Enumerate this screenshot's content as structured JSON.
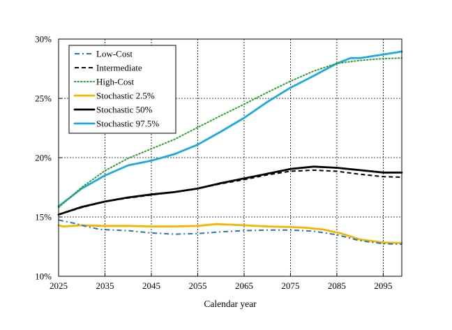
{
  "chart_data": {
    "type": "line",
    "title": "",
    "xlabel": "Calendar year",
    "ylabel": "",
    "xlim": [
      2025,
      2099
    ],
    "ylim": [
      10,
      30
    ],
    "xticks": [
      2025,
      2035,
      2045,
      2055,
      2065,
      2075,
      2085,
      2095
    ],
    "xtick_labels": [
      "2025",
      "2035",
      "2045",
      "2055",
      "2065",
      "2075",
      "2085",
      "2095"
    ],
    "yticks": [
      10,
      15,
      20,
      25,
      30
    ],
    "ytick_labels": [
      "10%",
      "15%",
      "20%",
      "25%",
      "30%"
    ],
    "grid": true,
    "legend_position": "top-left",
    "series": [
      {
        "name": "Low-Cost",
        "color": "#1f77c4",
        "style": "dashdot",
        "x": [
          2025,
          2028,
          2031,
          2034,
          2040,
          2045,
          2050,
          2055,
          2060,
          2065,
          2070,
          2075,
          2080,
          2085,
          2090,
          2095,
          2099
        ],
        "y": [
          14.75,
          14.5,
          14.2,
          13.95,
          13.85,
          13.65,
          13.55,
          13.6,
          13.75,
          13.85,
          13.9,
          13.9,
          13.8,
          13.5,
          13.0,
          12.75,
          12.7
        ]
      },
      {
        "name": "Intermediate",
        "color": "#000000",
        "style": "dashed",
        "x": [
          2025,
          2030,
          2035,
          2040,
          2045,
          2050,
          2055,
          2060,
          2065,
          2070,
          2075,
          2080,
          2085,
          2090,
          2095,
          2099
        ],
        "y": [
          15.2,
          15.8,
          16.3,
          16.6,
          16.85,
          17.1,
          17.4,
          17.8,
          18.15,
          18.55,
          18.85,
          18.95,
          18.85,
          18.6,
          18.4,
          18.35
        ]
      },
      {
        "name": "High-Cost",
        "color": "#2ca02c",
        "style": "dotted",
        "x": [
          2025,
          2030,
          2035,
          2040,
          2045,
          2050,
          2055,
          2060,
          2065,
          2070,
          2075,
          2080,
          2085,
          2090,
          2095,
          2099
        ],
        "y": [
          15.8,
          17.5,
          18.9,
          19.95,
          20.75,
          21.55,
          22.55,
          23.55,
          24.5,
          25.5,
          26.45,
          27.3,
          27.95,
          28.2,
          28.35,
          28.4
        ]
      },
      {
        "name": "Stochastic 2.5%",
        "color": "#f5b400",
        "style": "solid",
        "x": [
          2025,
          2026,
          2030,
          2035,
          2040,
          2045,
          2050,
          2055,
          2059,
          2065,
          2070,
          2075,
          2078,
          2082,
          2086,
          2090,
          2095,
          2099
        ],
        "y": [
          14.3,
          14.2,
          14.3,
          14.25,
          14.25,
          14.2,
          14.2,
          14.25,
          14.4,
          14.3,
          14.2,
          14.15,
          14.1,
          13.95,
          13.6,
          13.1,
          12.85,
          12.8
        ]
      },
      {
        "name": "Stochastic 50%",
        "color": "#000000",
        "style": "solid",
        "x": [
          2025,
          2030,
          2035,
          2040,
          2045,
          2050,
          2055,
          2060,
          2065,
          2070,
          2075,
          2080,
          2085,
          2090,
          2095,
          2099
        ],
        "y": [
          15.2,
          15.85,
          16.3,
          16.65,
          16.9,
          17.1,
          17.4,
          17.85,
          18.25,
          18.65,
          19.05,
          19.25,
          19.15,
          18.95,
          18.75,
          18.75
        ]
      },
      {
        "name": "Stochastic 97.5%",
        "color": "#1ba9e1",
        "style": "solid",
        "x": [
          2025,
          2030,
          2035,
          2040,
          2045,
          2050,
          2055,
          2060,
          2065,
          2070,
          2075,
          2080,
          2085,
          2088,
          2090,
          2095,
          2099
        ],
        "y": [
          15.9,
          17.4,
          18.5,
          19.35,
          19.75,
          20.3,
          21.1,
          22.2,
          23.35,
          24.7,
          25.9,
          26.9,
          27.95,
          28.4,
          28.4,
          28.7,
          28.95
        ]
      }
    ]
  }
}
